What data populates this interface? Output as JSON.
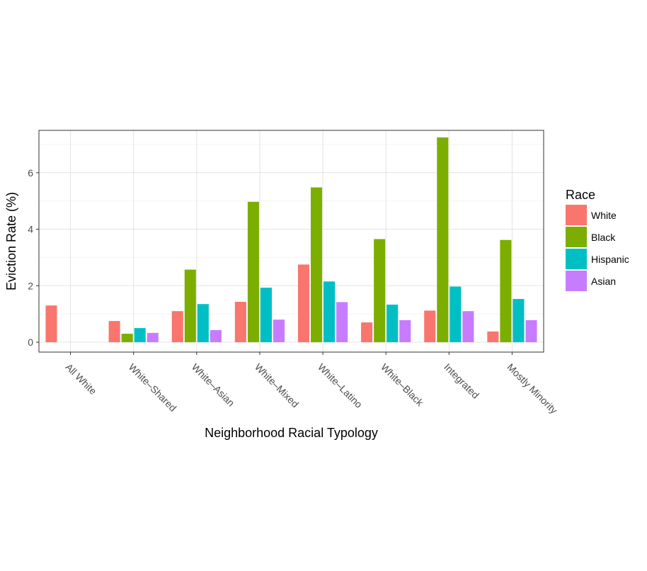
{
  "chart_data": {
    "type": "bar",
    "xlabel": "Neighborhood Racial Typology",
    "ylabel": "Eviction Rate (%)",
    "ylim": [
      -0.35,
      7.5
    ],
    "yticks": [
      0,
      2,
      4,
      6
    ],
    "grid": true,
    "legend": {
      "title": "Race",
      "position": "right"
    },
    "categories": [
      "All White",
      "White–Shared",
      "White–Asian",
      "White–Mixed",
      "White–Latino",
      "White–Black",
      "Integrated",
      "Mostly Minority"
    ],
    "series": [
      {
        "name": "White",
        "color": "#F8766D",
        "values": [
          1.3,
          0.75,
          1.1,
          1.43,
          2.75,
          0.7,
          1.12,
          0.38
        ]
      },
      {
        "name": "Black",
        "color": "#7CAE00",
        "values": [
          null,
          0.3,
          2.57,
          4.97,
          5.48,
          3.65,
          7.25,
          3.62
        ]
      },
      {
        "name": "Hispanic",
        "color": "#00BFC4",
        "values": [
          null,
          0.5,
          1.35,
          1.93,
          2.15,
          1.33,
          1.97,
          1.53
        ]
      },
      {
        "name": "Asian",
        "color": "#C77CFF",
        "values": [
          null,
          0.33,
          0.43,
          0.8,
          1.42,
          0.78,
          1.1,
          0.78
        ]
      }
    ]
  }
}
